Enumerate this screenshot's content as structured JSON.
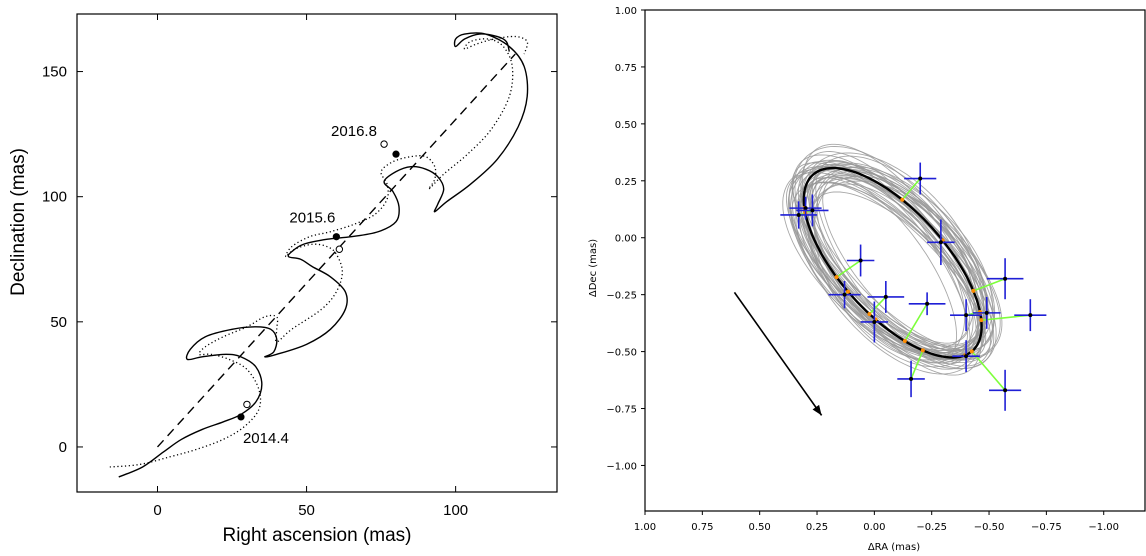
{
  "chart_data": [
    {
      "type": "line",
      "xlabel": "Right ascension (mas)",
      "ylabel": "Declination (mas)",
      "xlim": [
        -27,
        134
      ],
      "ylim": [
        -18,
        173
      ],
      "xticks": [
        0,
        50,
        100
      ],
      "yticks": [
        0,
        50,
        100,
        150
      ],
      "grid": false,
      "series": [
        {
          "style": "solid",
          "points": [
            [
              -13,
              -12
            ],
            [
              -5,
              -8
            ],
            [
              2,
              -2
            ],
            [
              8,
              3
            ],
            [
              15,
              7
            ],
            [
              22,
              10
            ],
            [
              28,
              13
            ],
            [
              33,
              18
            ],
            [
              35,
              25
            ],
            [
              33,
              32
            ],
            [
              28,
              36
            ],
            [
              23,
              37
            ],
            [
              15,
              36
            ],
            [
              10,
              35
            ],
            [
              11,
              39
            ],
            [
              16,
              44
            ],
            [
              25,
              47
            ],
            [
              33,
              48
            ],
            [
              38,
              47
            ],
            [
              40,
              43
            ],
            [
              39,
              38
            ],
            [
              36,
              36
            ],
            [
              40,
              37
            ],
            [
              50,
              41
            ],
            [
              58,
              47
            ],
            [
              63,
              55
            ],
            [
              63,
              62
            ],
            [
              58,
              68
            ],
            [
              52,
              72
            ],
            [
              48,
              75
            ],
            [
              44,
              76
            ],
            [
              45,
              78
            ],
            [
              49,
              81
            ],
            [
              57,
              83
            ],
            [
              65,
              84
            ],
            [
              74,
              86
            ],
            [
              80,
              90
            ],
            [
              81,
              96
            ],
            [
              79,
              102
            ],
            [
              76,
              106
            ],
            [
              80,
              110
            ],
            [
              85,
              112
            ],
            [
              90,
              111
            ],
            [
              94,
              108
            ],
            [
              96,
              103
            ],
            [
              94,
              97
            ],
            [
              93,
              94
            ],
            [
              97,
              98
            ],
            [
              105,
              105
            ],
            [
              114,
              115
            ],
            [
              121,
              128
            ],
            [
              124,
              140
            ],
            [
              123,
              152
            ],
            [
              118,
              160
            ],
            [
              110,
              165
            ],
            [
              103,
              165
            ],
            [
              100,
              163
            ],
            [
              100,
              160
            ],
            [
              103,
              163
            ],
            [
              108,
              165
            ],
            [
              114,
              164
            ],
            [
              117,
              162
            ],
            [
              118,
              158
            ]
          ]
        },
        {
          "style": "dotted",
          "points": [
            [
              -16,
              -8
            ],
            [
              -6,
              -7
            ],
            [
              4,
              -4
            ],
            [
              13,
              -1
            ],
            [
              22,
              3
            ],
            [
              29,
              8
            ],
            [
              34,
              15
            ],
            [
              34,
              23
            ],
            [
              30,
              31
            ],
            [
              24,
              35
            ],
            [
              18,
              37
            ],
            [
              14,
              37
            ],
            [
              16,
              40
            ],
            [
              22,
              44
            ],
            [
              30,
              48
            ],
            [
              36,
              52
            ],
            [
              40,
              52
            ],
            [
              40,
              47
            ],
            [
              40,
              42
            ],
            [
              45,
              47
            ],
            [
              55,
              55
            ],
            [
              60,
              62
            ],
            [
              62,
              70
            ],
            [
              60,
              77
            ],
            [
              57,
              80
            ],
            [
              52,
              81
            ],
            [
              46,
              79
            ],
            [
              43,
              76
            ],
            [
              45,
              80
            ],
            [
              51,
              84
            ],
            [
              58,
              86
            ],
            [
              66,
              89
            ],
            [
              73,
              93
            ],
            [
              77,
              99
            ],
            [
              77,
              105
            ],
            [
              75,
              110
            ],
            [
              79,
              114
            ],
            [
              85,
              116
            ],
            [
              90,
              116
            ],
            [
              93,
              112
            ],
            [
              93,
              107
            ],
            [
              91,
              103
            ],
            [
              96,
              109
            ],
            [
              104,
              117
            ],
            [
              112,
              127
            ],
            [
              118,
              140
            ],
            [
              119,
              152
            ],
            [
              116,
              160
            ],
            [
              111,
              163
            ],
            [
              105,
              162
            ],
            [
              103,
              159
            ],
            [
              107,
              161
            ],
            [
              113,
              163
            ],
            [
              120,
              164
            ],
            [
              124,
              162
            ],
            [
              123,
              157
            ]
          ]
        },
        {
          "style": "dashed",
          "points": [
            [
              0,
              0
            ],
            [
              120,
              157
            ]
          ]
        }
      ],
      "epochs": [
        {
          "label": "2014.4",
          "x": 28,
          "y": 12,
          "open_x": 30,
          "open_y": 17
        },
        {
          "label": "2015.6",
          "x": 60,
          "y": 84,
          "open_x": 61,
          "open_y": 79
        },
        {
          "label": "2016.8",
          "x": 80,
          "y": 117,
          "open_x": 76,
          "open_y": 121
        }
      ]
    },
    {
      "type": "scatter",
      "xlabel": "ΔRA (mas)",
      "ylabel": "ΔDec (mas)",
      "xlim": [
        1.0,
        -1.18
      ],
      "ylim": [
        -1.2,
        1.0
      ],
      "xticks": [
        1.0,
        0.75,
        0.5,
        0.25,
        0.0,
        -0.25,
        -0.5,
        -0.75,
        -1.0
      ],
      "xtick_labels": [
        "1.00",
        "0.75",
        "0.50",
        "0.25",
        "0.00",
        "−0.25",
        "−0.50",
        "−0.75",
        "−1.00"
      ],
      "yticks": [
        1.0,
        0.75,
        0.5,
        0.25,
        0.0,
        -0.25,
        -0.5,
        -0.75,
        -1.0
      ],
      "ytick_labels": [
        "1.00",
        "0.75",
        "0.50",
        "0.25",
        "0.00",
        "−0.25",
        "−0.50",
        "−0.75",
        "−1.00"
      ],
      "grid": false,
      "best_fit_orbit": {
        "center": [
          -0.08,
          -0.11
        ],
        "semi_major": 0.52,
        "semi_minor": 0.23,
        "angle_deg": 48
      },
      "sample_orbits_count": 40,
      "measurements": [
        {
          "x": 0.33,
          "y": 0.1,
          "xerr": 0.08,
          "yerr": 0.06
        },
        {
          "x": 0.3,
          "y": 0.13,
          "xerr": 0.07,
          "yerr": 0.05
        },
        {
          "x": 0.27,
          "y": 0.12,
          "xerr": 0.07,
          "yerr": 0.07
        },
        {
          "x": -0.2,
          "y": 0.26,
          "xerr": 0.07,
          "yerr": 0.07
        },
        {
          "x": -0.29,
          "y": -0.02,
          "xerr": 0.06,
          "yerr": 0.1
        },
        {
          "x": 0.06,
          "y": -0.1,
          "xerr": 0.06,
          "yerr": 0.07
        },
        {
          "x": 0.13,
          "y": -0.25,
          "xerr": 0.07,
          "yerr": 0.06
        },
        {
          "x": -0.05,
          "y": -0.26,
          "xerr": 0.08,
          "yerr": 0.07
        },
        {
          "x": 0.0,
          "y": -0.37,
          "xerr": 0.06,
          "yerr": 0.09
        },
        {
          "x": -0.23,
          "y": -0.29,
          "xerr": 0.08,
          "yerr": 0.05
        },
        {
          "x": -0.4,
          "y": -0.34,
          "xerr": 0.07,
          "yerr": 0.07
        },
        {
          "x": -0.49,
          "y": -0.33,
          "xerr": 0.06,
          "yerr": 0.07
        },
        {
          "x": -0.57,
          "y": -0.18,
          "xerr": 0.08,
          "yerr": 0.09
        },
        {
          "x": -0.68,
          "y": -0.34,
          "xerr": 0.07,
          "yerr": 0.07
        },
        {
          "x": -0.4,
          "y": -0.52,
          "xerr": 0.06,
          "yerr": 0.07
        },
        {
          "x": -0.16,
          "y": -0.62,
          "xerr": 0.06,
          "yerr": 0.08
        },
        {
          "x": -0.57,
          "y": -0.67,
          "xerr": 0.07,
          "yerr": 0.09
        }
      ],
      "arrow": {
        "from": [
          0.61,
          -0.24
        ],
        "to": [
          0.23,
          -0.78
        ]
      },
      "colors": {
        "samples": "#999999",
        "best_fit": "#000000",
        "residual": "#7dff3a",
        "error_bars": "#1f1fd6",
        "markers": "#ff8c00"
      }
    }
  ]
}
